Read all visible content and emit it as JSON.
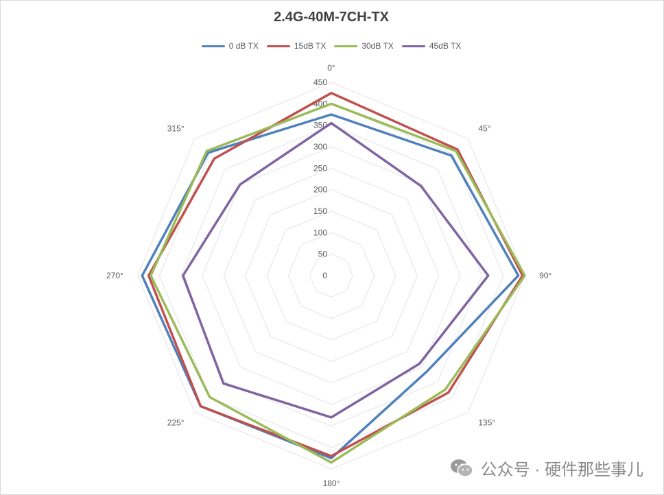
{
  "chart_data": {
    "type": "radar",
    "title": "2.4G-40M-7CH-TX",
    "angles": [
      "0°",
      "45°",
      "90°",
      "135°",
      "180°",
      "225°",
      "270°",
      "315°"
    ],
    "ticks": [
      "0",
      "50",
      "100",
      "150",
      "200",
      "250",
      "300",
      "350",
      "400",
      "450"
    ],
    "rmax": 450,
    "grid": true,
    "legend_position": "top",
    "series": [
      {
        "name": "0 dB TX",
        "color": "#4f81bd",
        "values": [
          375,
          395,
          435,
          315,
          425,
          430,
          440,
          405
        ]
      },
      {
        "name": "15dB TX",
        "color": "#c0504d",
        "values": [
          425,
          415,
          445,
          385,
          420,
          430,
          425,
          385
        ]
      },
      {
        "name": "30dB TX",
        "color": "#9bbb59",
        "values": [
          400,
          410,
          450,
          375,
          435,
          400,
          420,
          410
        ]
      },
      {
        "name": "45dB TX",
        "color": "#8064a2",
        "values": [
          355,
          295,
          365,
          290,
          330,
          355,
          345,
          300
        ]
      }
    ]
  },
  "watermark": {
    "text": "公众号 · 硬件那些事儿",
    "icon": "wechat-icon"
  }
}
